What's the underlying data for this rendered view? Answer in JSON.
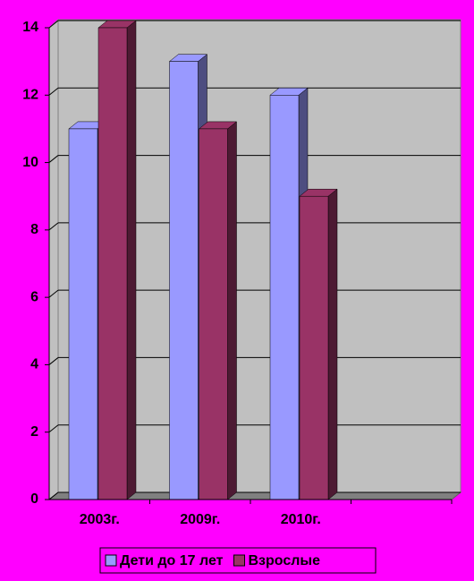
{
  "chart_data": {
    "type": "bar3d",
    "categories": [
      "2003г.",
      "2009г.",
      "2010г.",
      null
    ],
    "series": [
      {
        "name": "Дети до 17 лет",
        "color": "#9999ff",
        "values": [
          11,
          13,
          12,
          null
        ]
      },
      {
        "name": "Взрослые",
        "color": "#993366",
        "values": [
          14,
          11,
          9,
          null
        ]
      }
    ],
    "ylim": [
      0,
      14
    ],
    "yticks": [
      0,
      2,
      4,
      6,
      8,
      10,
      12,
      14
    ],
    "grid": true,
    "legend": "bottom"
  }
}
